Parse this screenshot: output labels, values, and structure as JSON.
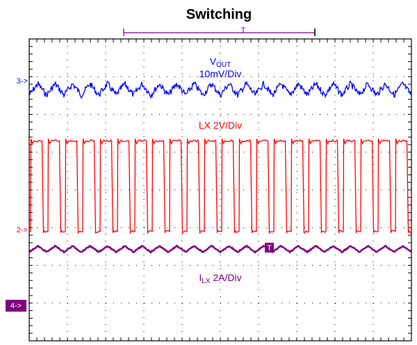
{
  "chart_data": {
    "type": "line",
    "title": "Switching",
    "grid": true,
    "divisions": {
      "x": 10,
      "y": 8
    },
    "colors": {
      "vout": "#0000ff",
      "lx": "#ff0000",
      "ilx": "#800080",
      "grid": "#000000"
    },
    "trigger_marker": "T",
    "series": [
      {
        "key": "vout",
        "name_main": "V",
        "name_sub": "OUT",
        "scale": "10mV/Div",
        "channel_marker": "3->",
        "waveform": "triangle ripple",
        "cycles": 22,
        "offset_div": 0.25,
        "amplitude_div": 0.15
      },
      {
        "key": "lx",
        "name_main": "LX",
        "name_sub": "",
        "scale": "2V/Div",
        "channel_marker": "2->",
        "waveform": "square",
        "cycles": 22,
        "high_div": 2.35,
        "low_div": -0.05,
        "duty": 0.5
      },
      {
        "key": "ilx",
        "name_main": "I",
        "name_sub": "LX",
        "scale": "2A/Div",
        "channel_marker": "4->",
        "waveform": "triangle ripple",
        "cycles": 22,
        "offset_div": 0.5,
        "amplitude_div": 0.08
      }
    ]
  }
}
